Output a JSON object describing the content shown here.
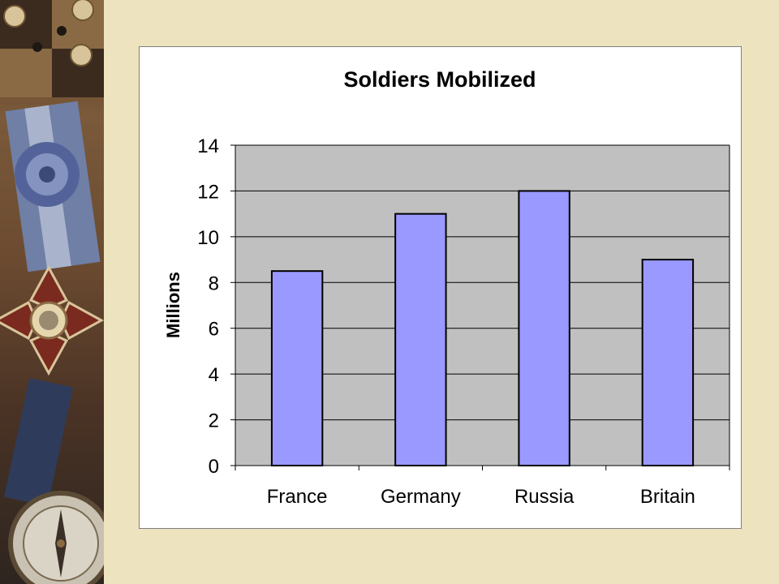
{
  "colors": {
    "slide_background": "#eee3bf",
    "panel_background": "#ffffff",
    "plot_area": "#c0c0c0",
    "bar_fill": "#9999ff",
    "bar_stroke": "#000000",
    "gridline": "#000000"
  },
  "decoration": {
    "left_strip_icons": [
      "medal-cross-icon",
      "ribbon-rosette-icon",
      "compass-icon",
      "buttons-icon"
    ]
  },
  "chart_data": {
    "type": "bar",
    "title": "Soldiers Mobilized",
    "xlabel": "",
    "ylabel": "Millions",
    "categories": [
      "France",
      "Germany",
      "Russia",
      "Britain"
    ],
    "values": [
      8.5,
      11,
      12,
      9
    ],
    "ylim": [
      0,
      14
    ],
    "yticks": [
      0,
      2,
      4,
      6,
      8,
      10,
      12,
      14
    ],
    "grid": true,
    "legend": "none"
  }
}
